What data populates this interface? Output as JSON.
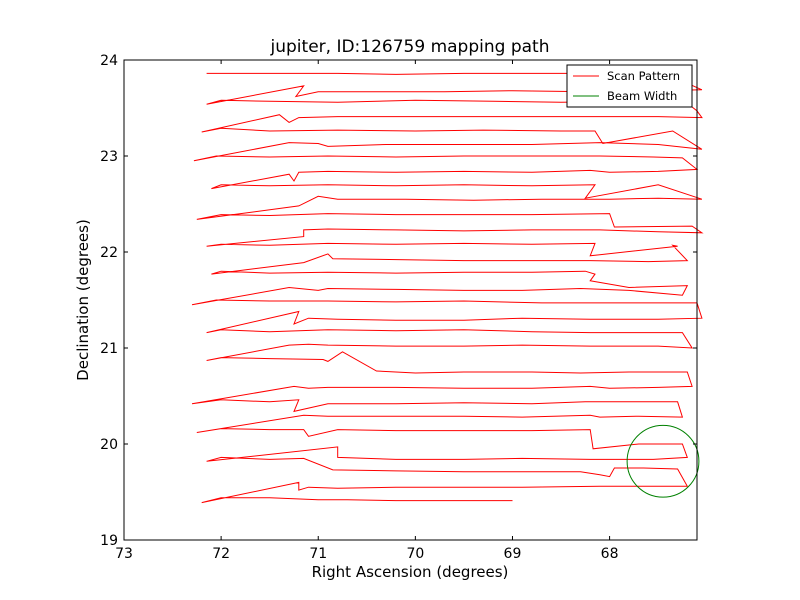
{
  "chart_data": {
    "type": "line",
    "title": "jupiter, ID:126759 mapping path",
    "xlabel": "Right Ascension (degrees)",
    "ylabel": "Declination (degrees)",
    "xlim": [
      73,
      67.1
    ],
    "ylim": [
      19,
      24
    ],
    "x_inverted": true,
    "xticks": [
      "73",
      "72",
      "71",
      "70",
      "69",
      "68"
    ],
    "yticks": [
      "19",
      "20",
      "21",
      "22",
      "23",
      "24"
    ],
    "grid": false,
    "legend_position": "top-right",
    "series": [
      {
        "name": "Scan Pattern",
        "color": "#ff0000",
        "points": [
          [
            72.15,
            23.86
          ],
          [
            71.5,
            23.86
          ],
          [
            70.8,
            23.86
          ],
          [
            70.2,
            23.85
          ],
          [
            69.5,
            23.86
          ],
          [
            68.8,
            23.86
          ],
          [
            68.2,
            23.86
          ],
          [
            67.65,
            23.85
          ],
          [
            67.38,
            23.84
          ],
          [
            67.05,
            23.69
          ],
          [
            67.5,
            23.68
          ],
          [
            68.2,
            23.67
          ],
          [
            69.0,
            23.68
          ],
          [
            69.7,
            23.67
          ],
          [
            70.5,
            23.67
          ],
          [
            71.0,
            23.67
          ],
          [
            71.23,
            23.62
          ],
          [
            71.15,
            23.73
          ],
          [
            72.15,
            23.54
          ],
          [
            72.0,
            23.58
          ],
          [
            71.5,
            23.57
          ],
          [
            70.8,
            23.56
          ],
          [
            70.0,
            23.58
          ],
          [
            69.2,
            23.57
          ],
          [
            68.5,
            23.56
          ],
          [
            67.5,
            23.57
          ],
          [
            67.2,
            23.55
          ],
          [
            67.1,
            23.47
          ],
          [
            67.05,
            23.4
          ],
          [
            67.5,
            23.41
          ],
          [
            68.2,
            23.41
          ],
          [
            68.9,
            23.41
          ],
          [
            69.6,
            23.41
          ],
          [
            70.2,
            23.41
          ],
          [
            70.8,
            23.41
          ],
          [
            71.2,
            23.4
          ],
          [
            71.3,
            23.35
          ],
          [
            71.4,
            23.43
          ],
          [
            72.2,
            23.25
          ],
          [
            72.0,
            23.29
          ],
          [
            71.5,
            23.26
          ],
          [
            70.8,
            23.27
          ],
          [
            70.0,
            23.26
          ],
          [
            69.3,
            23.27
          ],
          [
            68.5,
            23.26
          ],
          [
            68.15,
            23.26
          ],
          [
            68.07,
            23.13
          ],
          [
            67.35,
            23.26
          ],
          [
            67.05,
            23.07
          ],
          [
            67.5,
            23.12
          ],
          [
            68.1,
            23.14
          ],
          [
            68.8,
            23.12
          ],
          [
            69.5,
            23.12
          ],
          [
            70.3,
            23.12
          ],
          [
            70.9,
            23.1
          ],
          [
            71.0,
            23.13
          ],
          [
            71.3,
            23.14
          ],
          [
            72.28,
            22.95
          ],
          [
            72.05,
            23.0
          ],
          [
            71.5,
            22.99
          ],
          [
            70.9,
            23.0
          ],
          [
            70.2,
            22.99
          ],
          [
            69.5,
            23.0
          ],
          [
            68.8,
            23.0
          ],
          [
            68.1,
            23.0
          ],
          [
            67.55,
            22.99
          ],
          [
            67.25,
            22.98
          ],
          [
            67.1,
            22.86
          ],
          [
            67.5,
            22.84
          ],
          [
            68.0,
            22.83
          ],
          [
            68.2,
            22.85
          ],
          [
            68.8,
            22.83
          ],
          [
            69.5,
            22.84
          ],
          [
            70.2,
            22.83
          ],
          [
            70.9,
            22.84
          ],
          [
            71.2,
            22.83
          ],
          [
            71.25,
            22.74
          ],
          [
            71.3,
            22.81
          ],
          [
            72.1,
            22.66
          ],
          [
            72.0,
            22.7
          ],
          [
            71.5,
            22.69
          ],
          [
            70.9,
            22.7
          ],
          [
            70.2,
            22.69
          ],
          [
            69.5,
            22.7
          ],
          [
            68.8,
            22.69
          ],
          [
            68.15,
            22.7
          ],
          [
            68.25,
            22.56
          ],
          [
            67.5,
            22.7
          ],
          [
            67.05,
            22.55
          ],
          [
            67.5,
            22.56
          ],
          [
            68.0,
            22.55
          ],
          [
            68.7,
            22.55
          ],
          [
            69.4,
            22.54
          ],
          [
            70.1,
            22.55
          ],
          [
            70.8,
            22.55
          ],
          [
            71.0,
            22.58
          ],
          [
            71.2,
            22.48
          ],
          [
            72.25,
            22.34
          ],
          [
            72.0,
            22.39
          ],
          [
            71.5,
            22.38
          ],
          [
            70.9,
            22.4
          ],
          [
            70.2,
            22.39
          ],
          [
            69.5,
            22.39
          ],
          [
            68.8,
            22.39
          ],
          [
            68.0,
            22.4
          ],
          [
            67.95,
            22.26
          ],
          [
            67.15,
            22.27
          ],
          [
            67.05,
            22.2
          ],
          [
            67.5,
            22.21
          ],
          [
            68.1,
            22.23
          ],
          [
            68.8,
            22.23
          ],
          [
            69.5,
            22.22
          ],
          [
            70.2,
            22.23
          ],
          [
            70.9,
            22.24
          ],
          [
            71.15,
            22.23
          ],
          [
            71.15,
            22.16
          ],
          [
            72.15,
            22.06
          ],
          [
            72.0,
            22.08
          ],
          [
            71.5,
            22.07
          ],
          [
            70.9,
            22.09
          ],
          [
            70.2,
            22.08
          ],
          [
            69.5,
            22.09
          ],
          [
            68.8,
            22.08
          ],
          [
            68.15,
            22.09
          ],
          [
            68.2,
            21.96
          ],
          [
            67.3,
            22.06
          ],
          [
            67.35,
            22.07
          ],
          [
            67.2,
            21.91
          ],
          [
            67.6,
            21.9
          ],
          [
            68.2,
            21.91
          ],
          [
            68.8,
            21.91
          ],
          [
            69.5,
            21.91
          ],
          [
            70.1,
            21.92
          ],
          [
            70.85,
            21.93
          ],
          [
            70.9,
            21.98
          ],
          [
            71.15,
            21.89
          ],
          [
            72.1,
            21.77
          ],
          [
            72.0,
            21.8
          ],
          [
            71.5,
            21.78
          ],
          [
            70.9,
            21.79
          ],
          [
            70.2,
            21.78
          ],
          [
            69.5,
            21.79
          ],
          [
            68.8,
            21.79
          ],
          [
            68.25,
            21.8
          ],
          [
            68.15,
            21.77
          ],
          [
            68.2,
            21.7
          ],
          [
            67.8,
            21.63
          ],
          [
            67.2,
            21.65
          ],
          [
            67.25,
            21.55
          ],
          [
            67.8,
            21.6
          ],
          [
            68.3,
            21.62
          ],
          [
            68.9,
            21.6
          ],
          [
            69.5,
            21.6
          ],
          [
            70.2,
            21.61
          ],
          [
            70.9,
            21.62
          ],
          [
            71.0,
            21.6
          ],
          [
            71.3,
            21.63
          ],
          [
            72.3,
            21.45
          ],
          [
            72.05,
            21.5
          ],
          [
            71.5,
            21.49
          ],
          [
            70.9,
            21.49
          ],
          [
            70.2,
            21.48
          ],
          [
            69.5,
            21.49
          ],
          [
            68.7,
            21.47
          ],
          [
            68.3,
            21.47
          ],
          [
            67.85,
            21.47
          ],
          [
            67.1,
            21.47
          ],
          [
            67.05,
            21.31
          ],
          [
            67.5,
            21.3
          ],
          [
            68.2,
            21.3
          ],
          [
            68.9,
            21.31
          ],
          [
            69.5,
            21.29
          ],
          [
            70.2,
            21.29
          ],
          [
            70.8,
            21.3
          ],
          [
            71.1,
            21.31
          ],
          [
            71.25,
            21.25
          ],
          [
            71.2,
            21.38
          ],
          [
            72.15,
            21.16
          ],
          [
            72.0,
            21.19
          ],
          [
            71.5,
            21.17
          ],
          [
            70.9,
            21.19
          ],
          [
            70.2,
            21.18
          ],
          [
            69.5,
            21.19
          ],
          [
            68.8,
            21.17
          ],
          [
            68.2,
            21.16
          ],
          [
            67.5,
            21.16
          ],
          [
            67.25,
            21.16
          ],
          [
            67.15,
            21.0
          ],
          [
            67.5,
            21.02
          ],
          [
            68.2,
            21.02
          ],
          [
            68.9,
            21.03
          ],
          [
            69.5,
            21.02
          ],
          [
            70.2,
            21.02
          ],
          [
            70.9,
            21.03
          ],
          [
            71.1,
            21.04
          ],
          [
            71.3,
            21.03
          ],
          [
            72.15,
            20.87
          ],
          [
            72.0,
            20.9
          ],
          [
            71.5,
            20.89
          ],
          [
            70.95,
            20.88
          ],
          [
            70.9,
            20.86
          ],
          [
            70.75,
            20.96
          ],
          [
            70.4,
            20.76
          ],
          [
            70.0,
            20.74
          ],
          [
            69.5,
            20.75
          ],
          [
            68.8,
            20.75
          ],
          [
            68.3,
            20.74
          ],
          [
            67.8,
            20.75
          ],
          [
            67.2,
            20.75
          ],
          [
            67.15,
            20.6
          ],
          [
            67.5,
            20.59
          ],
          [
            68.0,
            20.58
          ],
          [
            68.2,
            20.6
          ],
          [
            68.8,
            20.58
          ],
          [
            69.5,
            20.58
          ],
          [
            70.2,
            20.59
          ],
          [
            70.9,
            20.59
          ],
          [
            71.1,
            20.58
          ],
          [
            71.25,
            20.6
          ],
          [
            72.3,
            20.42
          ],
          [
            72.0,
            20.46
          ],
          [
            71.5,
            20.44
          ],
          [
            71.2,
            20.46
          ],
          [
            71.25,
            20.34
          ],
          [
            70.9,
            20.42
          ],
          [
            70.2,
            20.42
          ],
          [
            69.5,
            20.43
          ],
          [
            68.8,
            20.42
          ],
          [
            68.25,
            20.44
          ],
          [
            67.3,
            20.44
          ],
          [
            67.25,
            20.28
          ],
          [
            67.7,
            20.29
          ],
          [
            68.1,
            20.28
          ],
          [
            68.2,
            20.3
          ],
          [
            68.9,
            20.28
          ],
          [
            69.5,
            20.29
          ],
          [
            70.2,
            20.29
          ],
          [
            70.9,
            20.29
          ],
          [
            71.15,
            20.3
          ],
          [
            72.25,
            20.12
          ],
          [
            72.0,
            20.16
          ],
          [
            71.5,
            20.15
          ],
          [
            71.15,
            20.15
          ],
          [
            71.1,
            20.08
          ],
          [
            70.8,
            20.15
          ],
          [
            70.2,
            20.14
          ],
          [
            69.5,
            20.14
          ],
          [
            68.8,
            20.14
          ],
          [
            68.2,
            20.15
          ],
          [
            68.17,
            19.95
          ],
          [
            67.7,
            20.0
          ],
          [
            67.25,
            20.0
          ],
          [
            67.2,
            19.86
          ],
          [
            67.55,
            19.84
          ],
          [
            68.2,
            19.84
          ],
          [
            68.9,
            19.85
          ],
          [
            69.5,
            19.84
          ],
          [
            70.2,
            19.84
          ],
          [
            70.8,
            19.86
          ],
          [
            70.8,
            19.97
          ],
          [
            72.15,
            19.82
          ],
          [
            72.0,
            19.86
          ],
          [
            71.5,
            19.84
          ],
          [
            71.15,
            19.85
          ],
          [
            70.85,
            19.73
          ],
          [
            70.2,
            19.72
          ],
          [
            69.5,
            19.71
          ],
          [
            68.8,
            19.71
          ],
          [
            68.3,
            19.71
          ],
          [
            68.1,
            19.68
          ],
          [
            68.0,
            19.66
          ],
          [
            67.95,
            19.75
          ],
          [
            67.65,
            19.75
          ],
          [
            67.3,
            19.74
          ],
          [
            67.2,
            19.56
          ],
          [
            67.5,
            19.56
          ],
          [
            68.1,
            19.56
          ],
          [
            68.9,
            19.55
          ],
          [
            69.5,
            19.55
          ],
          [
            70.2,
            19.55
          ],
          [
            70.8,
            19.54
          ],
          [
            71.1,
            19.55
          ],
          [
            71.2,
            19.52
          ],
          [
            71.2,
            19.6
          ],
          [
            72.2,
            19.39
          ],
          [
            72.0,
            19.44
          ],
          [
            71.5,
            19.44
          ],
          [
            71.0,
            19.42
          ],
          [
            70.7,
            19.42
          ],
          [
            70.2,
            19.41
          ],
          [
            69.5,
            19.41
          ],
          [
            69.3,
            19.41
          ],
          [
            69.0,
            19.41
          ]
        ]
      },
      {
        "name": "Beam Width",
        "color": "#008000",
        "center": [
          67.45,
          19.82
        ],
        "radius": 0.37
      }
    ]
  }
}
